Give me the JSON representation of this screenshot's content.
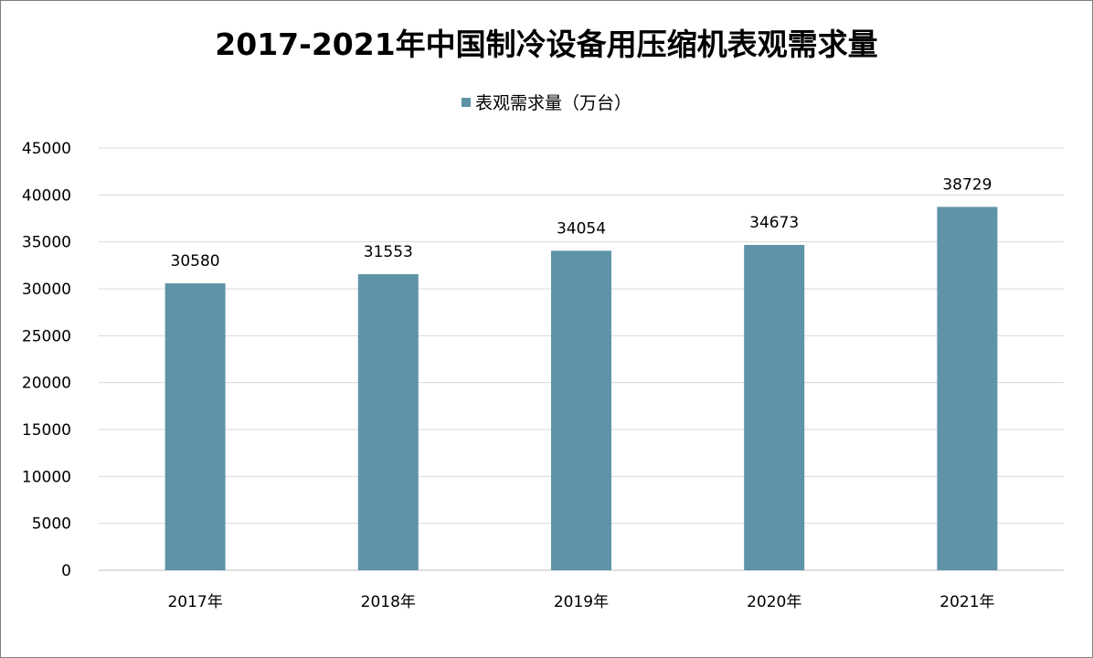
{
  "colors": {
    "bar": "#5f93a8",
    "grid": "#d9d9d9",
    "axis": "#bfbfbf"
  },
  "chart_data": {
    "type": "bar",
    "title": "2017-2021年中国制冷设备用压缩机表观需求量",
    "legend_position": "top",
    "grid": true,
    "categories": [
      "2017年",
      "2018年",
      "2019年",
      "2020年",
      "2021年"
    ],
    "series": [
      {
        "name": "表观需求量（万台）",
        "values": [
          30580,
          31553,
          34054,
          34673,
          38729
        ]
      }
    ],
    "data_labels": [
      "30580",
      "31553",
      "34054",
      "34673",
      "38729"
    ],
    "ylim": [
      0,
      45000
    ],
    "yticks": [
      0,
      5000,
      10000,
      15000,
      20000,
      25000,
      30000,
      35000,
      40000,
      45000
    ],
    "ytick_labels": [
      "0",
      "5000",
      "10000",
      "15000",
      "20000",
      "25000",
      "30000",
      "35000",
      "40000",
      "45000"
    ],
    "xlabel": "",
    "ylabel": ""
  }
}
